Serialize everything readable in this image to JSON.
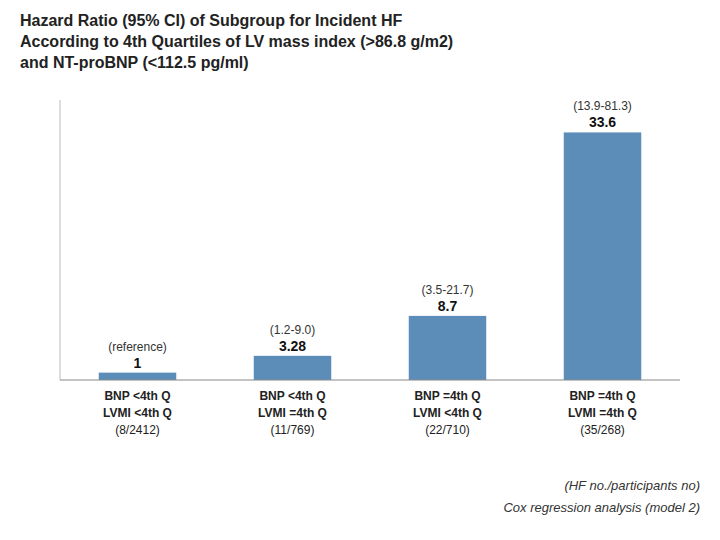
{
  "chart_data": {
    "type": "bar",
    "title": "Hazard Ratio (95% CI) of Subgroup for Incident HF\nAccording to 4th Quartiles of LV mass index (>86.8 g/m2)\nand NT-proBNP (<112.5 pg/ml)",
    "categories": [
      "BNP <4th Q\nLVMI <4th Q\n(8/2412)",
      "BNP <4th Q\nLVMI =4th Q\n(11/769)",
      "BNP =4th Q\nLVMI <4th Q\n(22/710)",
      "BNP =4th Q\nLVMI =4th Q\n(35/268)"
    ],
    "values": [
      1.0,
      3.28,
      8.7,
      33.6
    ],
    "data_labels": true,
    "ci_labels": [
      "(reference)",
      "(1.2-9.0)",
      "(3.5-21.7)",
      "(13.9-81.3)"
    ],
    "footnotes": [
      "(HF no./participants no)",
      "Cox regression analysis (model 2)"
    ],
    "color": "#5b8db8",
    "ylim": [
      0,
      38
    ],
    "grid": false,
    "tick_labels": "x"
  }
}
